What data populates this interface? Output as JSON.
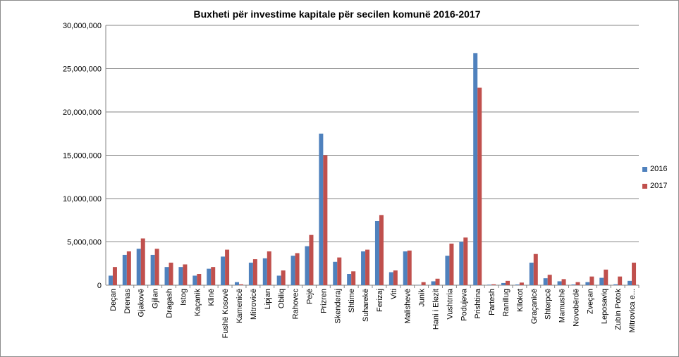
{
  "chart_data": {
    "type": "bar",
    "title": "Buxheti për investime kapitale për secilen komunë 2016-2017",
    "xlabel": "",
    "ylabel": "",
    "ylim": [
      0,
      30000000
    ],
    "yticks": [
      0,
      5000000,
      10000000,
      15000000,
      20000000,
      25000000,
      30000000
    ],
    "ytick_labels": [
      "0",
      "5,000,000",
      "10,000,000",
      "15,000,000",
      "20,000,000",
      "25,000,000",
      "30,000,000"
    ],
    "grid": true,
    "legend_position": "right",
    "categories": [
      "Deçan",
      "Drenas",
      "Gjakovë",
      "Gjilan",
      "Dragash",
      "Istog",
      "Kaçanik",
      "Klinë",
      "Fushë Kosovë",
      "Kamenicë",
      "Mitrovicë",
      "Lipjan",
      "Obiliq",
      "Rahovec",
      "Pejë",
      "Prizren",
      "Skenderaj",
      "Shtime",
      "Suharekë",
      "Ferizaj",
      "Viti",
      "Malishevë",
      "Junik",
      "Hani i Elezit",
      "Vushtrria",
      "Podujeva",
      "Prishtina",
      "Partesh",
      "Ranillug",
      "Kllokot",
      "Graçanicë",
      "Shterpcë",
      "Mamushë",
      "Novobërdë",
      "Zveçan",
      "Leposaviq",
      "Zubin Potok",
      "Mitrovica e..."
    ],
    "series": [
      {
        "name": "2016",
        "color": "#4f81bd",
        "values": [
          1100000,
          3500000,
          4200000,
          3500000,
          2100000,
          2100000,
          1100000,
          1900000,
          3300000,
          350000,
          2600000,
          3100000,
          1100000,
          3400000,
          4500000,
          17500000,
          2700000,
          1300000,
          3900000,
          7400000,
          1500000,
          3900000,
          30000,
          450000,
          3400000,
          5000000,
          26800000,
          60000,
          250000,
          80000,
          2600000,
          800000,
          450000,
          80000,
          350000,
          850000,
          100000,
          500000
        ]
      },
      {
        "name": "2017",
        "color": "#c0504d",
        "values": [
          2100000,
          3900000,
          5400000,
          4200000,
          2600000,
          2400000,
          1300000,
          2100000,
          4100000,
          100000,
          3000000,
          3900000,
          1700000,
          3700000,
          5800000,
          15000000,
          3200000,
          1600000,
          4100000,
          8100000,
          1700000,
          4000000,
          350000,
          750000,
          4800000,
          5500000,
          22800000,
          100000,
          500000,
          300000,
          3600000,
          1200000,
          700000,
          350000,
          1000000,
          1800000,
          1000000,
          2600000
        ]
      }
    ]
  }
}
